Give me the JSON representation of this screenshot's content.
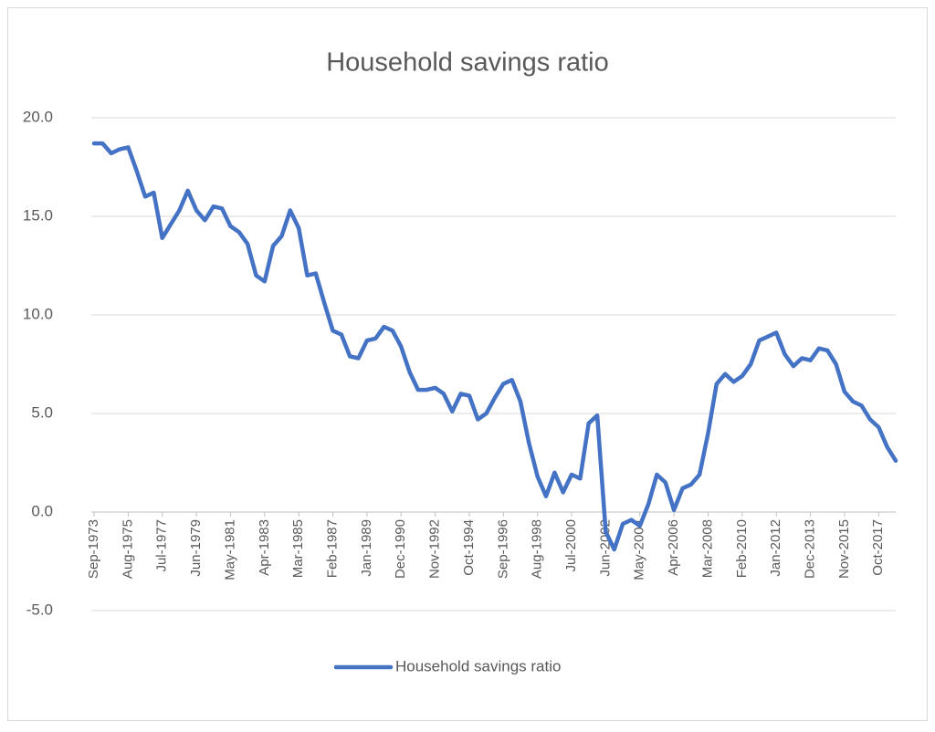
{
  "chart_data": {
    "type": "line",
    "title": "Household savings ratio",
    "categories": [
      "Sep-1973",
      null,
      null,
      null,
      "Aug-1975",
      null,
      null,
      null,
      "Jul-1977",
      null,
      null,
      null,
      "Jun-1979",
      null,
      null,
      null,
      "May-1981",
      null,
      null,
      null,
      "Apr-1983",
      null,
      null,
      null,
      "Mar-1985",
      null,
      null,
      null,
      "Feb-1987",
      null,
      null,
      null,
      "Jan-1989",
      null,
      null,
      null,
      "Dec-1990",
      null,
      null,
      null,
      "Nov-1992",
      null,
      null,
      null,
      "Oct-1994",
      null,
      null,
      null,
      "Sep-1996",
      null,
      null,
      null,
      "Aug-1998",
      null,
      null,
      null,
      "Jul-2000",
      null,
      null,
      null,
      "Jun-2002",
      null,
      null,
      null,
      "May-2004",
      null,
      null,
      null,
      "Apr-2006",
      null,
      null,
      null,
      "Mar-2008",
      null,
      null,
      null,
      "Feb-2010",
      null,
      null,
      null,
      "Jan-2012",
      null,
      null,
      null,
      "Dec-2013",
      null,
      null,
      null,
      "Nov-2015",
      null,
      null,
      null,
      "Oct-2017",
      null,
      null
    ],
    "series": [
      {
        "name": "Household savings ratio",
        "color": "#4472c4",
        "values": [
          18.7,
          18.7,
          18.2,
          18.4,
          18.5,
          17.3,
          16.0,
          16.2,
          13.9,
          14.6,
          15.3,
          16.3,
          15.3,
          14.8,
          15.5,
          15.4,
          14.5,
          14.2,
          13.6,
          12.0,
          11.7,
          13.5,
          14.0,
          15.3,
          14.4,
          12.0,
          12.1,
          10.6,
          9.2,
          9.0,
          7.9,
          7.8,
          8.7,
          8.8,
          9.4,
          9.2,
          8.4,
          7.1,
          6.2,
          6.2,
          6.3,
          6.0,
          5.1,
          6.0,
          5.9,
          4.7,
          5.0,
          5.8,
          6.5,
          6.7,
          5.6,
          3.5,
          1.8,
          0.8,
          2.0,
          1.0,
          1.9,
          1.7,
          4.5,
          4.9,
          -1.0,
          -1.9,
          -0.6,
          -0.4,
          -0.7,
          0.4,
          1.9,
          1.5,
          0.1,
          1.2,
          1.4,
          1.9,
          4.0,
          6.5,
          7.0,
          6.6,
          6.9,
          7.5,
          8.7,
          8.9,
          9.1,
          8.0,
          7.4,
          7.8,
          7.7,
          8.3,
          8.2,
          7.5,
          6.1,
          5.6,
          5.4,
          4.7,
          4.3,
          3.3,
          2.6
        ]
      }
    ],
    "ylim": [
      -5,
      20
    ],
    "yticks": [
      {
        "value": -5,
        "label": "-5.0"
      },
      {
        "value": 0,
        "label": "0.0"
      },
      {
        "value": 5,
        "label": "5.0"
      },
      {
        "value": 10,
        "label": "10.0"
      },
      {
        "value": 15,
        "label": "15.0"
      },
      {
        "value": 20,
        "label": "20.0"
      }
    ],
    "grid": true,
    "legend": "bottom"
  }
}
